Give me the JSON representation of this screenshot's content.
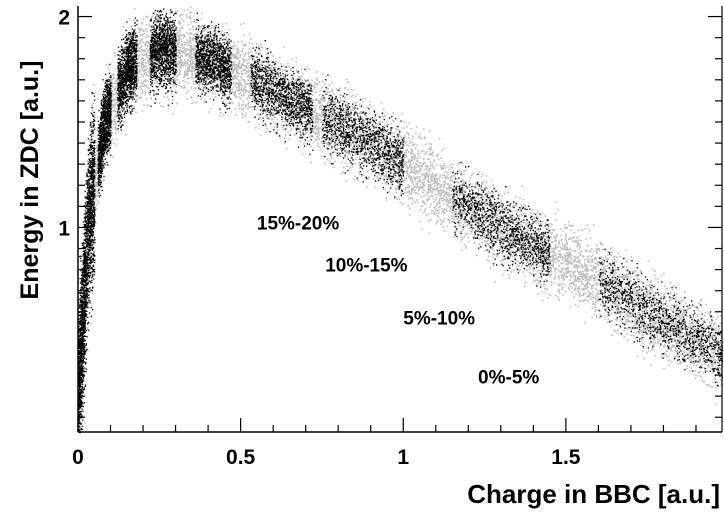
{
  "chart_data": {
    "type": "scatter",
    "title": "",
    "xlabel": "Charge in BBC [a.u.]",
    "ylabel": "Energy in ZDC [a.u.]",
    "xlim": [
      0,
      1.98
    ],
    "ylim": [
      0.03,
      2.05
    ],
    "x_ticks": [
      0,
      0.5,
      1,
      1.5
    ],
    "x_tick_labels": [
      "0",
      "0.5",
      "1",
      "1.5"
    ],
    "y_ticks": [
      1,
      2
    ],
    "y_tick_labels": [
      "1",
      "2"
    ],
    "grid": false,
    "legend": "none",
    "colors": {
      "all_events": "#bdbdbd",
      "centrality_bins": "#000000"
    },
    "band_centerline": {
      "x": [
        0.0,
        0.03,
        0.08,
        0.15,
        0.25,
        0.4,
        0.6,
        0.85,
        1.05,
        1.3,
        1.55,
        1.75,
        1.98
      ],
      "y": [
        0.2,
        1.0,
        1.5,
        1.75,
        1.85,
        1.8,
        1.65,
        1.45,
        1.25,
        1.0,
        0.8,
        0.6,
        0.4
      ]
    },
    "series": [
      {
        "label": "0%-5%",
        "x": [
          1.6,
          1.98
        ],
        "label_x": 1.23,
        "label_y": 0.26
      },
      {
        "label": "5%-10%",
        "x": [
          1.15,
          1.45
        ],
        "label_x": 1.0,
        "label_y": 0.54
      },
      {
        "label": "10%-15%",
        "x": [
          0.75,
          1.0
        ],
        "label_x": 0.76,
        "label_y": 0.79
      },
      {
        "label": "15%-20%",
        "x": [
          0.53,
          0.72
        ],
        "label_x": 0.55,
        "label_y": 0.99
      },
      {
        "label": "",
        "x": [
          0.36,
          0.47
        ]
      },
      {
        "label": "",
        "x": [
          0.22,
          0.3
        ]
      },
      {
        "label": "",
        "x": [
          0.12,
          0.18
        ]
      },
      {
        "label": "",
        "x": [
          0.06,
          0.1
        ]
      },
      {
        "label": "",
        "x": [
          0.02,
          0.05
        ]
      },
      {
        "label": "",
        "x": [
          0.0,
          0.02
        ]
      }
    ]
  }
}
